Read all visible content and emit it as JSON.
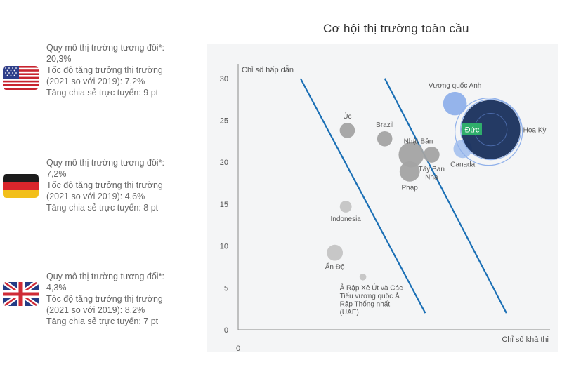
{
  "countries": [
    {
      "name": "United States",
      "flag": "us-flag-icon",
      "lines": [
        "Quy mô thị trường tương đối*:",
        "20,3%",
        "Tốc độ tăng trưởng thị trường",
        "(2021 so với 2019): 7,2%",
        "Tăng chia sẻ trực tuyến: 9 pt"
      ]
    },
    {
      "name": "Germany",
      "flag": "germany-flag-icon",
      "lines": [
        "Quy mô thị trường tương đối*:",
        "7,2%",
        "Tốc độ tăng trưởng thị trường",
        "(2021 so với 2019): 4,6%",
        "Tăng chia sẻ trực tuyến: 8 pt"
      ]
    },
    {
      "name": "United Kingdom",
      "flag": "uk-flag-icon",
      "lines": [
        "Quy mô thị trường tương đối*:",
        "4,3%",
        "Tốc độ tăng trưởng thị trường",
        "(2021 so với 2019): 8,2%",
        "Tăng chia sẻ trực tuyến: 7 pt"
      ]
    }
  ],
  "chart_data": {
    "type": "scatter",
    "title": "Cơ hội thị trường toàn cầu",
    "xlabel": "Chỉ số khả thi",
    "ylabel": "Chỉ số hấp dẫn",
    "xlim": [
      0,
      100
    ],
    "ylim": [
      0,
      33
    ],
    "x_ticks": [
      "0"
    ],
    "y_ticks": [
      0,
      5,
      10,
      15,
      20,
      25,
      30
    ],
    "colors": {
      "grey": "#a3a3a3",
      "light_grey": "#c4c4c4",
      "light_blue": "#a9c3ee",
      "mid_blue": "#8fb0ea",
      "navy": "#182f5c",
      "green": "#2fae6b",
      "line": "#1a6fb5"
    },
    "points": [
      {
        "label": [
          "Úc"
        ],
        "x": 35,
        "y": 23.8,
        "size": 1.8,
        "color": "grey",
        "label_pos": "above"
      },
      {
        "label": [
          "Brazil"
        ],
        "x": 47,
        "y": 22.8,
        "size": 1.8,
        "color": "grey",
        "label_pos": "above"
      },
      {
        "label": [
          "Nhật Bản"
        ],
        "x": 55.5,
        "y": 20.9,
        "size": 3,
        "color": "grey",
        "label_pos": "above-right"
      },
      {
        "label": [
          "Tây Ban",
          "Nha"
        ],
        "x": 62,
        "y": 20.9,
        "size": 1.9,
        "color": "grey",
        "label_pos": "below"
      },
      {
        "label": [
          "Pháp"
        ],
        "x": 55,
        "y": 18.9,
        "size": 2.4,
        "color": "grey",
        "label_pos": "below"
      },
      {
        "label": [
          "Indonesia"
        ],
        "x": 34.5,
        "y": 14.7,
        "size": 1.4,
        "color": "light_grey",
        "label_pos": "below"
      },
      {
        "label": [
          "Ấn Độ"
        ],
        "x": 31,
        "y": 9.2,
        "size": 1.9,
        "color": "light_grey",
        "label_pos": "below"
      },
      {
        "label": [
          "Ả Rập Xê Út và Các",
          "Tiểu vương quốc Ả",
          "Rập Thống nhất",
          "(UAE)"
        ],
        "x": 40,
        "y": 6.3,
        "size": 0.8,
        "color": "light_grey",
        "label_pos": "below-left"
      },
      {
        "label": [
          "Vương quốc Anh"
        ],
        "x": 69.5,
        "y": 27,
        "size": 2.8,
        "color": "mid_blue",
        "label_pos": "above"
      },
      {
        "label": [
          "Canada"
        ],
        "x": 72,
        "y": 21.6,
        "size": 2.2,
        "color": "light_blue",
        "label_pos": "below"
      },
      {
        "label": [
          "Hoa Kỳ"
        ],
        "x": 81,
        "y": 23.9,
        "size": 7,
        "color": "navy",
        "label_pos": "right"
      }
    ],
    "highlight": {
      "label": "Đức",
      "x": 75,
      "y": 23.9
    },
    "bands": [
      {
        "x1": 20,
        "y1": 30,
        "x2": 60,
        "y2": 2
      },
      {
        "x1": 47,
        "y1": 30,
        "x2": 86,
        "y2": 2
      }
    ]
  }
}
